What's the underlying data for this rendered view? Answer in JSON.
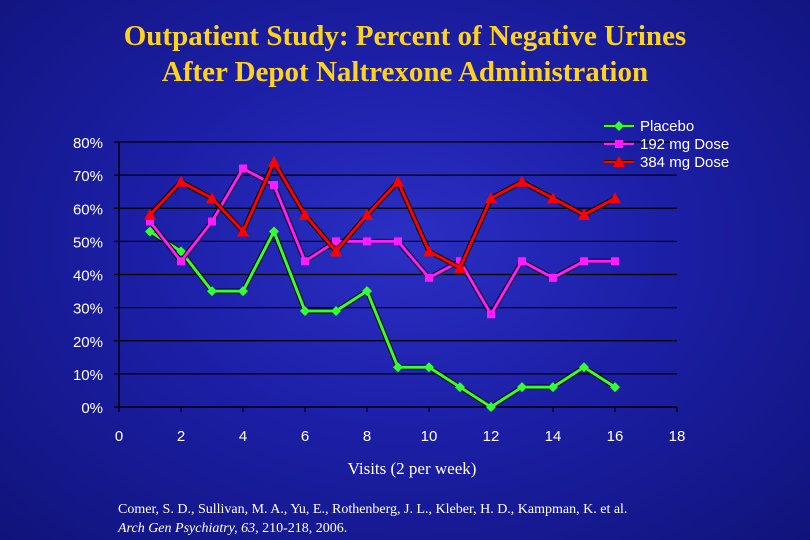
{
  "title_lines": [
    "Outpatient Study:  Percent of Negative Urines",
    "After Depot Naltrexone Administration"
  ],
  "citation": {
    "line1": "Comer, S. D., Sullivan, M. A., Yu, E., Rothenberg, J. L., Kleber, H. D., Kampman, K. et al.",
    "journal": "Arch Gen Psychiatry",
    "volume": "63",
    "pages": ", 210-218, 2006."
  },
  "colors": {
    "background": "#1c1fa6",
    "title": "#ffd21e",
    "text": "#ffffff",
    "axis": "#000000"
  },
  "chart_data": {
    "type": "line",
    "title": "Outpatient Study:  Percent of Negative Urines After Depot Naltrexone Administration",
    "xlabel": "Visits (2 per week)",
    "ylabel": "",
    "xlim": [
      0,
      18
    ],
    "ylim": [
      0,
      0.8
    ],
    "x_ticks": [
      "0",
      "2",
      "4",
      "6",
      "8",
      "10",
      "12",
      "14",
      "16",
      "18"
    ],
    "y_ticks": [
      "0%",
      "10%",
      "20%",
      "30%",
      "40%",
      "50%",
      "60%",
      "70%",
      "80%"
    ],
    "grid": "horizontal",
    "legend_position": "top-right",
    "series": [
      {
        "name": "Placebo",
        "color": "#33ff33",
        "marker": "diamond",
        "x": [
          1,
          2,
          3,
          4,
          5,
          6,
          7,
          8,
          9,
          10,
          11,
          12,
          13,
          14,
          15,
          16
        ],
        "values": [
          0.53,
          0.47,
          0.35,
          0.35,
          0.53,
          0.29,
          0.29,
          0.35,
          0.12,
          0.12,
          0.06,
          0.0,
          0.06,
          0.06,
          0.12,
          0.06
        ]
      },
      {
        "name": "192 mg Dose",
        "color": "#ff1cff",
        "marker": "square",
        "x": [
          1,
          2,
          3,
          4,
          5,
          6,
          7,
          8,
          9,
          10,
          11,
          12,
          13,
          14,
          15,
          16
        ],
        "values": [
          0.56,
          0.44,
          0.56,
          0.72,
          0.67,
          0.44,
          0.5,
          0.5,
          0.5,
          0.39,
          0.44,
          0.28,
          0.44,
          0.39,
          0.44,
          0.44
        ]
      },
      {
        "name": "384 mg Dose",
        "color": "#ff0000",
        "marker": "triangle",
        "x": [
          1,
          2,
          3,
          4,
          5,
          6,
          7,
          8,
          9,
          10,
          11,
          12,
          13,
          14,
          15,
          16
        ],
        "values": [
          0.58,
          0.68,
          0.63,
          0.53,
          0.74,
          0.58,
          0.47,
          0.58,
          0.68,
          0.47,
          0.42,
          0.63,
          0.68,
          0.63,
          0.58,
          0.63
        ]
      }
    ]
  }
}
